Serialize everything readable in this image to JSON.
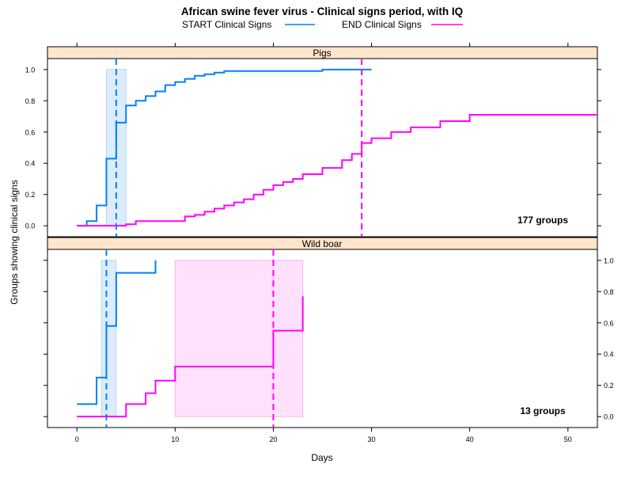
{
  "chart_data": {
    "type": "line",
    "title": "African swine fever virus - Clinical signs period, with IQ",
    "xlabel": "Days",
    "ylabel": "Groups showing clinical signs",
    "xlim": [
      -3,
      53
    ],
    "xticks": [
      0,
      10,
      20,
      30,
      40,
      50
    ],
    "yticks": [
      0,
      0.2,
      0.4,
      0.6,
      0.8,
      1
    ],
    "ytick_labels": [
      "0.0",
      "0.2",
      "0.4",
      "0.6",
      "0.8",
      "1.0"
    ],
    "legend": {
      "placement": "top",
      "entries": [
        {
          "label": "START Clinical Signs",
          "color": "#0080ff"
        },
        {
          "label": "END Clinical Signs",
          "color": "#ff00ff"
        }
      ]
    },
    "panels": [
      {
        "strip_label": "Pigs",
        "group_count_label": "177 groups",
        "ylim": [
          -0.07,
          1.07
        ],
        "y_axis_side": "left",
        "start_median": 4,
        "end_median": 29,
        "start_iq": [
          3,
          5
        ],
        "end_iq": null,
        "series": [
          {
            "name": "START Clinical Signs",
            "color": "#0080ff",
            "x": [
              0,
              1,
              2,
              3,
              4,
              5,
              6,
              7,
              8,
              9,
              10,
              11,
              12,
              13,
              14,
              15,
              20,
              25,
              30
            ],
            "y": [
              0,
              0.03,
              0.13,
              0.43,
              0.66,
              0.77,
              0.8,
              0.83,
              0.86,
              0.9,
              0.92,
              0.94,
              0.96,
              0.97,
              0.98,
              0.99,
              0.99,
              1.0,
              1.0
            ]
          },
          {
            "name": "END Clinical Signs",
            "color": "#ff00ff",
            "x": [
              0,
              5,
              6,
              11,
              12,
              13,
              14,
              15,
              16,
              17,
              18,
              19,
              20,
              21,
              22,
              23,
              25,
              27,
              28,
              29,
              30,
              32,
              34,
              37,
              40,
              53
            ],
            "y": [
              0,
              0.01,
              0.03,
              0.06,
              0.07,
              0.09,
              0.11,
              0.13,
              0.15,
              0.17,
              0.2,
              0.23,
              0.26,
              0.28,
              0.3,
              0.33,
              0.37,
              0.42,
              0.46,
              0.53,
              0.56,
              0.6,
              0.63,
              0.67,
              0.71,
              0.71
            ]
          }
        ]
      },
      {
        "strip_label": "Wild boar",
        "group_count_label": "13 groups",
        "ylim": [
          -0.07,
          1.07
        ],
        "y_axis_side": "right",
        "start_median": 3,
        "end_median": 20,
        "start_iq": [
          2.5,
          4
        ],
        "end_iq": [
          10,
          23
        ],
        "series": [
          {
            "name": "START Clinical Signs",
            "color": "#0080ff",
            "x": [
              0,
              2,
              3,
              4,
              8
            ],
            "y": [
              0.08,
              0.25,
              0.58,
              0.92,
              1.0
            ]
          },
          {
            "name": "END Clinical Signs",
            "color": "#ff00ff",
            "x": [
              0,
              5,
              7,
              8,
              10,
              20,
              23
            ],
            "y": [
              0,
              0.08,
              0.15,
              0.23,
              0.32,
              0.55,
              0.77
            ]
          }
        ]
      }
    ]
  }
}
